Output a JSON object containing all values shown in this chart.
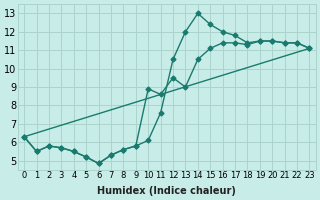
{
  "title": "",
  "xlabel": "Humidex (Indice chaleur)",
  "ylabel": "",
  "bg_color": "#c8ede8",
  "grid_color": "#aad4cc",
  "line_color": "#1a7a6e",
  "xlim": [
    -0.5,
    23.5
  ],
  "ylim": [
    4.5,
    13.5
  ],
  "yticks": [
    5,
    6,
    7,
    8,
    9,
    10,
    11,
    12,
    13
  ],
  "xticks": [
    0,
    1,
    2,
    3,
    4,
    5,
    6,
    7,
    8,
    9,
    10,
    11,
    12,
    13,
    14,
    15,
    16,
    17,
    18,
    19,
    20,
    21,
    22,
    23
  ],
  "xtick_labels": [
    "0",
    "1",
    "2",
    "3",
    "4",
    "5",
    "6",
    "7",
    "8",
    "9",
    "10",
    "11",
    "12",
    "13",
    "14",
    "15",
    "16",
    "17",
    "18",
    "19",
    "20",
    "21",
    "22",
    "23"
  ],
  "line1_x": [
    0,
    1,
    2,
    3,
    4,
    5,
    6,
    7,
    8,
    9,
    10,
    11,
    12,
    13,
    14,
    15,
    16,
    17,
    18,
    19,
    20,
    21,
    22,
    23
  ],
  "line1_y": [
    6.3,
    5.5,
    5.8,
    5.7,
    5.5,
    5.2,
    4.85,
    5.3,
    5.6,
    5.8,
    8.9,
    8.6,
    9.5,
    9.0,
    10.5,
    11.1,
    11.4,
    11.4,
    11.3,
    11.5,
    11.5,
    11.4,
    11.4,
    11.1
  ],
  "line2_x": [
    0,
    1,
    2,
    3,
    4,
    5,
    6,
    7,
    8,
    9,
    10,
    11,
    12,
    13,
    14,
    15,
    16,
    17,
    18,
    19,
    20,
    21,
    22,
    23
  ],
  "line2_y": [
    6.3,
    5.5,
    5.8,
    5.7,
    5.5,
    5.2,
    4.85,
    5.3,
    5.6,
    5.8,
    6.1,
    7.6,
    10.5,
    12.0,
    13.0,
    12.4,
    12.0,
    11.8,
    11.4,
    11.5,
    11.5,
    11.4,
    11.4,
    11.1
  ],
  "line3_x": [
    0,
    23
  ],
  "line3_y": [
    6.3,
    11.1
  ],
  "marker": "D",
  "markersize": 2.5,
  "linewidth": 1.0,
  "font_size": 7
}
